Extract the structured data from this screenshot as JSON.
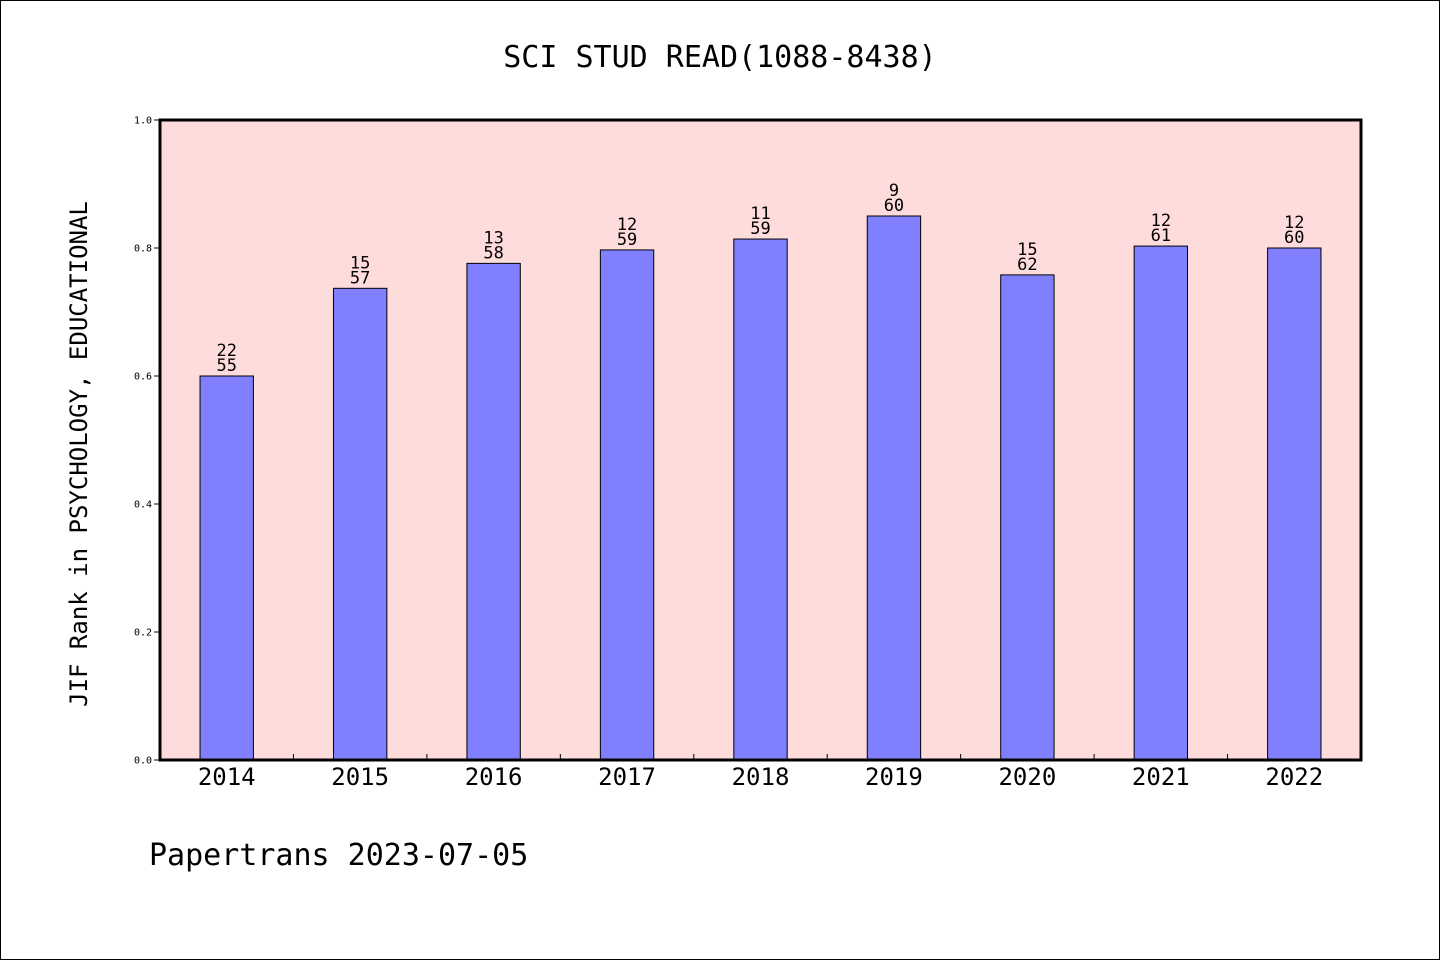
{
  "chart_data": {
    "type": "bar",
    "title": "SCI STUD READ(1088-8438)",
    "xlabel": "",
    "ylabel": "JIF Rank in PSYCHOLOGY, EDUCATIONAL",
    "ylim": [
      0.0,
      1.0
    ],
    "yticks": [
      "0.0",
      "0.2",
      "0.4",
      "0.6",
      "0.8",
      "1.0"
    ],
    "categories": [
      "2014",
      "2015",
      "2016",
      "2017",
      "2018",
      "2019",
      "2020",
      "2021",
      "2022"
    ],
    "values": [
      0.6,
      0.737,
      0.776,
      0.797,
      0.814,
      0.85,
      0.758,
      0.803,
      0.8
    ],
    "rank_labels": [
      [
        "22",
        "55"
      ],
      [
        "15",
        "57"
      ],
      [
        "13",
        "58"
      ],
      [
        "12",
        "59"
      ],
      [
        "11",
        "59"
      ],
      [
        "9",
        "60"
      ],
      [
        "15",
        "62"
      ],
      [
        "12",
        "61"
      ],
      [
        "12",
        "60"
      ]
    ],
    "grid": false,
    "colors": {
      "bar": "#8080ff",
      "plot_background": "#ffdcdc",
      "axis": "#000000"
    }
  },
  "footer": {
    "text": "Papertrans 2023-07-05"
  }
}
